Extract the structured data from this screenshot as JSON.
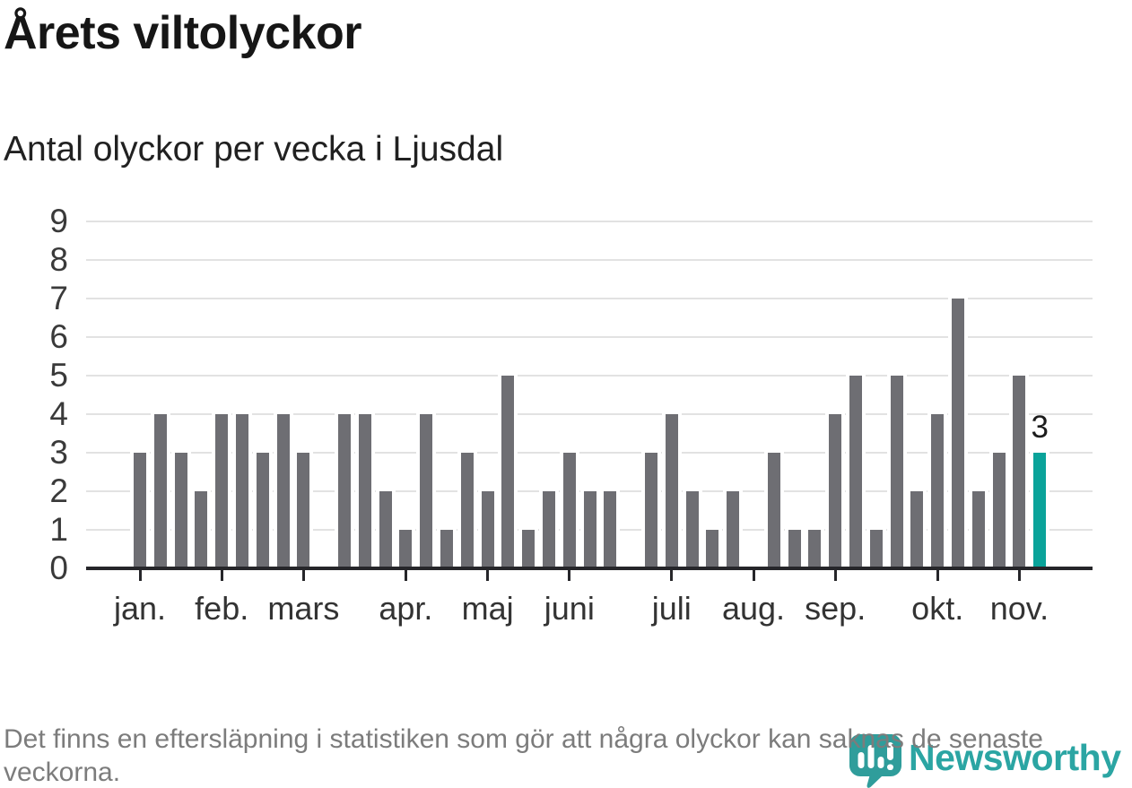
{
  "page": {
    "background": "#ffffff"
  },
  "header": {
    "title": "Årets viltolyckor",
    "subtitle": "Antal olyckor per vecka i Ljusdal"
  },
  "footer": {
    "note": "Det finns en eftersläpning i statistiken som gör att några olyckor kan saknas de senaste veckorna."
  },
  "branding": {
    "wordmark": "Newsworthy",
    "logo_icon": "newsworthy-bubble-barchart-icon",
    "wordmark_color": "#2BA5A3",
    "mark_color": "#2F9D9B"
  },
  "chart_data": {
    "type": "bar",
    "title": "Årets viltolyckor",
    "subtitle": "Antal olyckor per vecka i Ljusdal",
    "xlabel": "",
    "ylabel": "",
    "ylim": [
      0,
      9
    ],
    "y_ticks": [
      0,
      1,
      2,
      3,
      4,
      5,
      6,
      7,
      8,
      9
    ],
    "grid": true,
    "legend": "none",
    "bar_color": "#6E6E73",
    "highlight_color": "#0AA39A",
    "grid_color": "#E2E2E2",
    "axis_color": "#26262A",
    "annotation": {
      "text": "3",
      "target": "last-bar"
    },
    "months": [
      {
        "label": "jan.",
        "values": [
          3,
          4,
          3,
          2
        ]
      },
      {
        "label": "feb.",
        "values": [
          4,
          4,
          3,
          4
        ]
      },
      {
        "label": "mars",
        "values": [
          3,
          0,
          4,
          4,
          2
        ]
      },
      {
        "label": "apr.",
        "values": [
          1,
          4,
          1,
          3
        ]
      },
      {
        "label": "maj",
        "values": [
          2,
          5,
          1,
          2
        ]
      },
      {
        "label": "juni",
        "values": [
          3,
          2,
          2,
          0,
          3
        ]
      },
      {
        "label": "juli",
        "values": [
          4,
          2,
          1,
          2
        ]
      },
      {
        "label": "aug.",
        "values": [
          0,
          3,
          1,
          1
        ]
      },
      {
        "label": "sep.",
        "values": [
          4,
          5,
          1,
          5,
          2
        ]
      },
      {
        "label": "okt.",
        "values": [
          4,
          7,
          2,
          3
        ]
      },
      {
        "label": "nov.",
        "values": [
          5,
          3
        ]
      }
    ]
  }
}
